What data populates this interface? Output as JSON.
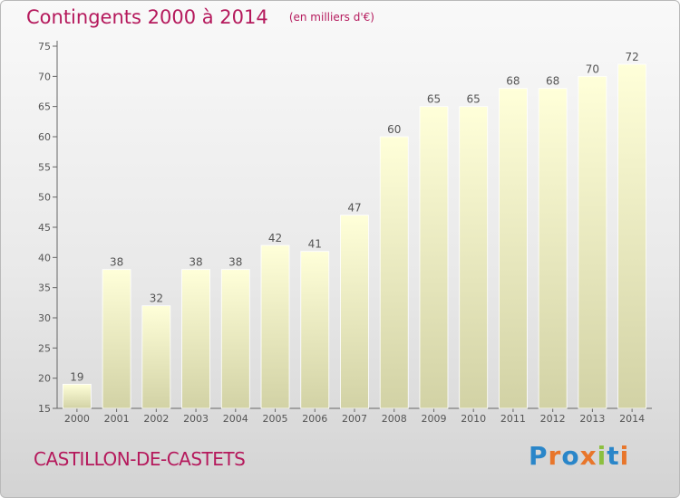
{
  "header": {
    "title": "Contingents 2000 à 2014",
    "unit": "(en milliers d'€)"
  },
  "footer": {
    "commune": "CASTILLON-DE-CASTETS",
    "brand": "Proxiti",
    "brand_letters": [
      {
        "char": "P",
        "color": "#2a86c9"
      },
      {
        "char": "r",
        "color": "#e8762b"
      },
      {
        "char": "o",
        "color": "#2a86c9"
      },
      {
        "char": "x",
        "color": "#e8762b"
      },
      {
        "char": "i",
        "color": "#8cbf3f"
      },
      {
        "char": "t",
        "color": "#2a86c9"
      },
      {
        "char": "i",
        "color": "#e8762b"
      }
    ]
  },
  "chart_data": {
    "type": "bar",
    "categories": [
      "2000",
      "2001",
      "2002",
      "2003",
      "2004",
      "2005",
      "2006",
      "2007",
      "2008",
      "2009",
      "2010",
      "2011",
      "2012",
      "2013",
      "2014"
    ],
    "values": [
      19,
      38,
      32,
      38,
      38,
      42,
      41,
      47,
      60,
      65,
      65,
      68,
      68,
      70,
      72
    ],
    "ylim": [
      15,
      75
    ],
    "yticks": [
      15,
      20,
      25,
      30,
      35,
      40,
      45,
      50,
      55,
      60,
      65,
      70,
      75
    ],
    "grid": false,
    "data_labels": true,
    "bar_color_top": "#ffffd9",
    "bar_color_bottom": "#d2d2a5",
    "label_color": "#555555"
  }
}
